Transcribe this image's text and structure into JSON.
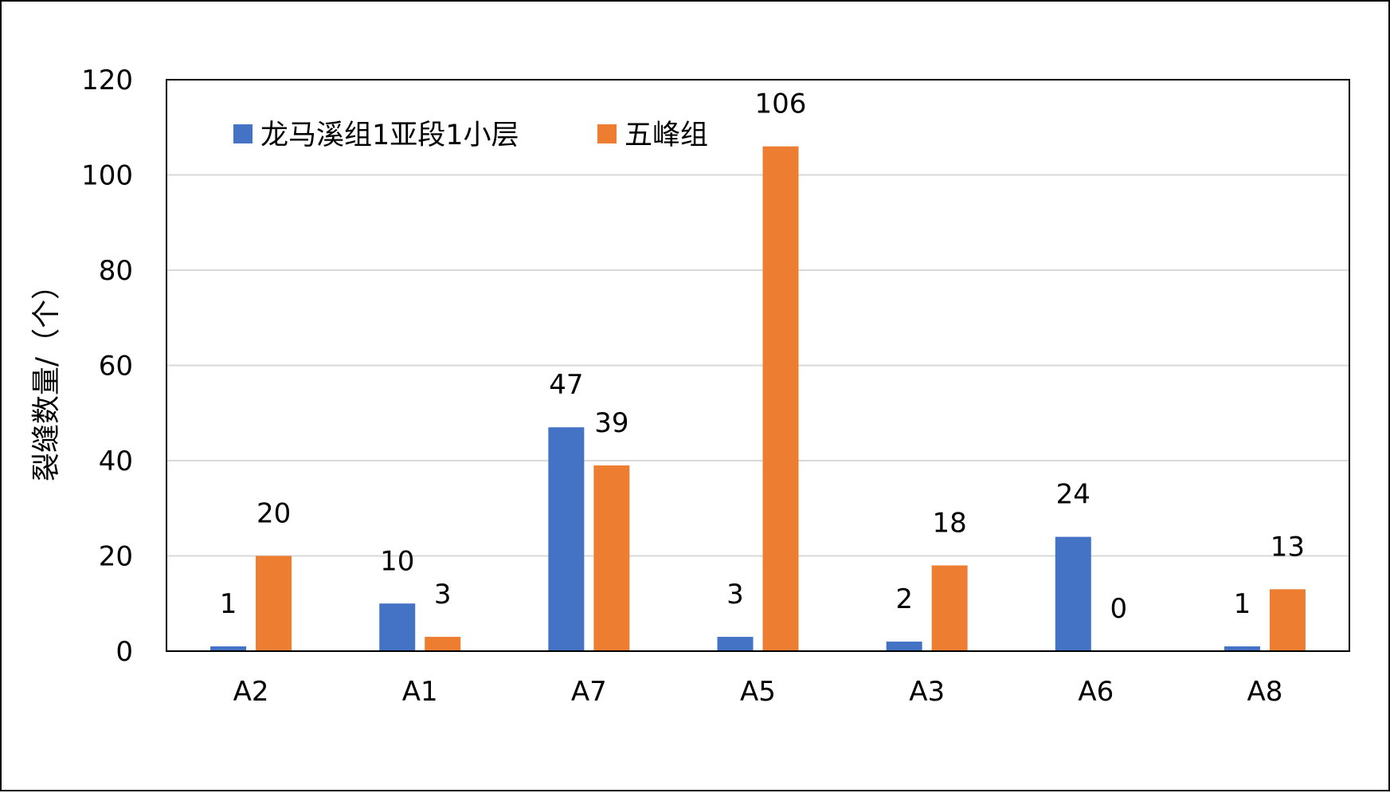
{
  "chart_data": {
    "type": "bar",
    "title": "",
    "xlabel": "",
    "ylabel": "裂缝数量/（个）",
    "ylim": [
      0,
      120
    ],
    "yticks": [
      0,
      20,
      40,
      60,
      80,
      100,
      120
    ],
    "grid": true,
    "legend_position": "top-left",
    "categories": [
      "A2",
      "A1",
      "A7",
      "A5",
      "A3",
      "A6",
      "A8"
    ],
    "series": [
      {
        "name": "龙马溪组1亚段1小层",
        "color": "#4472C4",
        "values": [
          1,
          10,
          47,
          3,
          2,
          24,
          1
        ]
      },
      {
        "name": "五峰组",
        "color": "#ED7D31",
        "values": [
          20,
          3,
          39,
          106,
          18,
          0,
          13
        ]
      }
    ]
  }
}
